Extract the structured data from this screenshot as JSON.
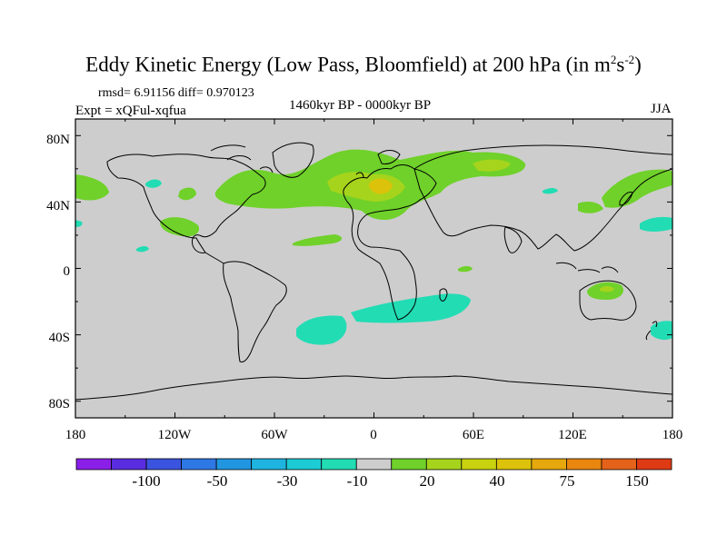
{
  "title": {
    "main": "Eddy Kinetic Energy (Low Pass, Bloomfield) at 200 hPa (in m",
    "sup1": "2",
    "mid": "s",
    "sup2": "-2",
    "end": ")"
  },
  "stats": "rmsd= 6.91156 diff= 0.970123",
  "experiment": "Expt = xQFul-xqfua",
  "period": "1460kyr BP - 0000kyr BP",
  "season": "JJA",
  "lat_labels": [
    "80N",
    "40N",
    "0",
    "40S",
    "80S"
  ],
  "lon_labels": [
    "180",
    "120W",
    "60W",
    "0",
    "60E",
    "120E",
    "180"
  ],
  "colorbar": {
    "colors": [
      "#8a1fe8",
      "#5a2ce0",
      "#3a54e0",
      "#2e78e6",
      "#2196e0",
      "#1fb4e0",
      "#1ccbd4",
      "#22dcb4",
      "#cdcdcd",
      "#6fd12a",
      "#a6d41c",
      "#c8d20e",
      "#dcc20a",
      "#e6a80c",
      "#e8860e",
      "#e4621a",
      "#de3a14"
    ],
    "labels": [
      "-100",
      "-50",
      "-30",
      "-10",
      "20",
      "40",
      "75",
      "150"
    ]
  },
  "colors": {
    "land_ocean": "#cdcdcd",
    "green": "#6fd12a",
    "yellowgreen": "#a6d41c",
    "yellow": "#c8d20e",
    "orange": "#dcc20a",
    "cyan": "#22dcb4"
  }
}
